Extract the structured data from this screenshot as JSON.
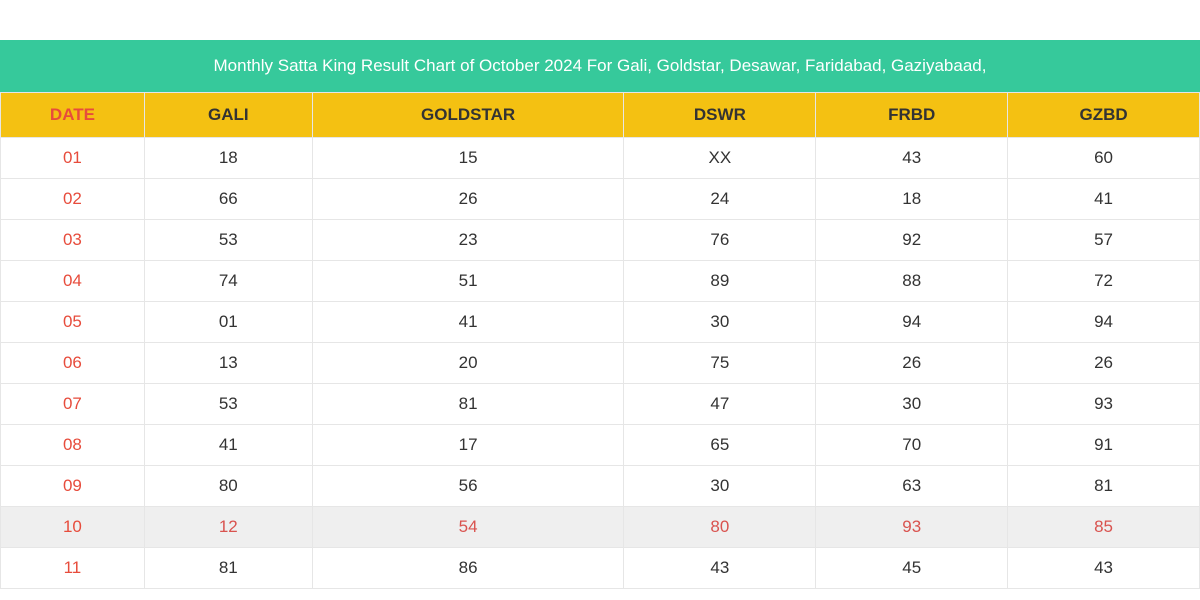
{
  "banner": {
    "text": "Monthly Satta King Result Chart of October 2024 For Gali, Goldstar, Desawar, Faridabad, Gaziyabaad,",
    "background_color": "#36c99b",
    "text_color": "#ffffff"
  },
  "table": {
    "header_bg": "#f4c112",
    "header_text_color": "#333333",
    "date_header_text_color": "#e74c3c",
    "border_color": "#e6e6e6",
    "row_bg": "#ffffff",
    "highlight_row_bg": "#efefef",
    "highlight_text_color": "#d9534f",
    "date_text_color": "#e74c3c",
    "cell_text_color": "#333333",
    "col_widths_pct": [
      12,
      14,
      26,
      16,
      16,
      16
    ],
    "columns": [
      "DATE",
      "GALI",
      "GOLDSTAR",
      "DSWR",
      "FRBD",
      "GZBD"
    ],
    "rows": [
      {
        "date": "01",
        "gali": "18",
        "goldstar": "15",
        "dswr": "XX",
        "frbd": "43",
        "gzbd": "60",
        "highlight": false
      },
      {
        "date": "02",
        "gali": "66",
        "goldstar": "26",
        "dswr": "24",
        "frbd": "18",
        "gzbd": "41",
        "highlight": false
      },
      {
        "date": "03",
        "gali": "53",
        "goldstar": "23",
        "dswr": "76",
        "frbd": "92",
        "gzbd": "57",
        "highlight": false
      },
      {
        "date": "04",
        "gali": "74",
        "goldstar": "51",
        "dswr": "89",
        "frbd": "88",
        "gzbd": "72",
        "highlight": false
      },
      {
        "date": "05",
        "gali": "01",
        "goldstar": "41",
        "dswr": "30",
        "frbd": "94",
        "gzbd": "94",
        "highlight": false
      },
      {
        "date": "06",
        "gali": "13",
        "goldstar": "20",
        "dswr": "75",
        "frbd": "26",
        "gzbd": "26",
        "highlight": false
      },
      {
        "date": "07",
        "gali": "53",
        "goldstar": "81",
        "dswr": "47",
        "frbd": "30",
        "gzbd": "93",
        "highlight": false
      },
      {
        "date": "08",
        "gali": "41",
        "goldstar": "17",
        "dswr": "65",
        "frbd": "70",
        "gzbd": "91",
        "highlight": false
      },
      {
        "date": "09",
        "gali": "80",
        "goldstar": "56",
        "dswr": "30",
        "frbd": "63",
        "gzbd": "81",
        "highlight": false
      },
      {
        "date": "10",
        "gali": "12",
        "goldstar": "54",
        "dswr": "80",
        "frbd": "93",
        "gzbd": "85",
        "highlight": true
      },
      {
        "date": "11",
        "gali": "81",
        "goldstar": "86",
        "dswr": "43",
        "frbd": "45",
        "gzbd": "43",
        "highlight": false
      }
    ]
  }
}
